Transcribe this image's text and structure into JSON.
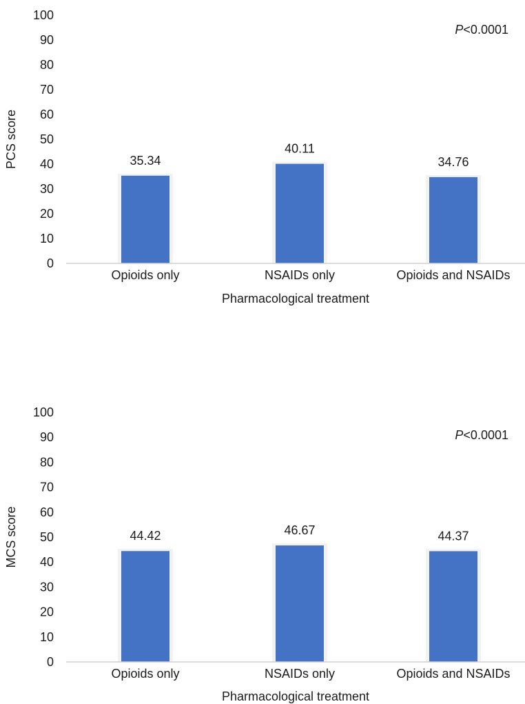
{
  "chart_data": [
    {
      "type": "bar",
      "categories": [
        "Opioids only",
        "NSAIDs only",
        "Opioids and NSAIDs"
      ],
      "values": [
        35.34,
        40.11,
        34.76
      ],
      "value_labels": [
        "35.34",
        "40.11",
        "34.76"
      ],
      "xlabel": "Pharmacological treatment",
      "ylabel": "PCS score",
      "ylim": [
        0,
        100
      ],
      "yticks": [
        0,
        10,
        20,
        30,
        40,
        50,
        60,
        70,
        80,
        90,
        100
      ],
      "annotation": {
        "italic": "P",
        "text": "<0.0001"
      },
      "bar_color": "#4472c4",
      "grid": false
    },
    {
      "type": "bar",
      "categories": [
        "Opioids only",
        "NSAIDs only",
        "Opioids and NSAIDs"
      ],
      "values": [
        44.42,
        46.67,
        44.37
      ],
      "value_labels": [
        "44.42",
        "46.67",
        "44.37"
      ],
      "xlabel": "Pharmacological treatment",
      "ylabel": "MCS score",
      "ylim": [
        0,
        100
      ],
      "yticks": [
        0,
        10,
        20,
        30,
        40,
        50,
        60,
        70,
        80,
        90,
        100
      ],
      "annotation": {
        "italic": "P",
        "text": "<0.0001"
      },
      "bar_color": "#4472c4",
      "grid": false
    }
  ]
}
